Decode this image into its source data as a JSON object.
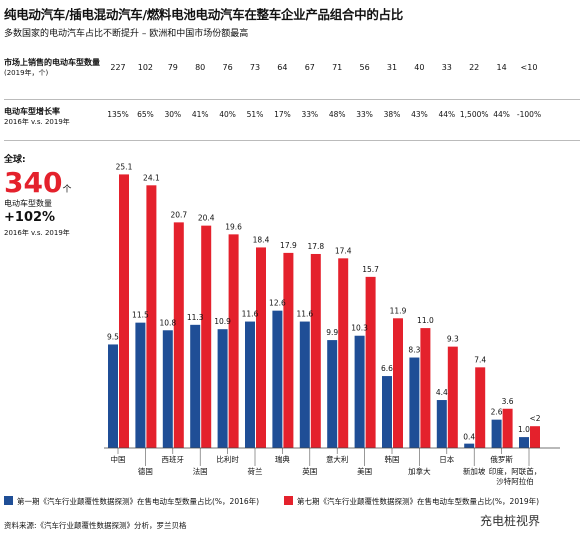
{
  "title": "纯电动汽车/插电混动汽车/燃料电池电动汽车在整车企业产品组合中的占比",
  "subtitle": "多数国家的电动汽车占比不断提升 – 欧洲和中国市场份额最高",
  "rows": {
    "models_label": "市场上销售的电动车型数量",
    "models_period": "(2019年，个)",
    "growth_label": "电动车型增长率",
    "growth_period": "2016年 v.s. 2019年"
  },
  "global": {
    "label": "全球:",
    "value": "340",
    "unit": "个",
    "desc": "电动车型数量",
    "growth": "+102%",
    "period": "2016年 v.s. 2019年"
  },
  "colors": {
    "series1": "#1f4e96",
    "series2": "#e4212c"
  },
  "chart_data": {
    "type": "bar",
    "categories": [
      "中国",
      "德国",
      "西班牙",
      "法国",
      "比利时",
      "荷兰",
      "瑞典",
      "英国",
      "意大利",
      "美国",
      "韩国",
      "加拿大",
      "日本",
      "新加坡",
      "俄罗斯",
      "印度，阿联酋，沙特阿拉伯"
    ],
    "model_counts": [
      "227",
      "102",
      "79",
      "80",
      "76",
      "73",
      "64",
      "67",
      "71",
      "56",
      "31",
      "40",
      "33",
      "22",
      "14",
      "<10"
    ],
    "growth_rates": [
      "135%",
      "65%",
      "30%",
      "41%",
      "40%",
      "51%",
      "17%",
      "33%",
      "48%",
      "33%",
      "38%",
      "43%",
      "44%",
      "1,500%",
      "44%",
      "-100%"
    ],
    "series": [
      {
        "name": "第一期《汽车行业颠覆性数据探测》在售电动车型数量占比(%，2016年)",
        "values": [
          9.5,
          11.5,
          10.8,
          11.3,
          10.9,
          11.6,
          12.6,
          11.6,
          9.9,
          10.3,
          6.6,
          8.3,
          4.4,
          0.4,
          2.6,
          1.0
        ],
        "labels": [
          "9.5",
          "11.5",
          "10.8",
          "11.3",
          "10.9",
          "11.6",
          "12.6",
          "11.6",
          "9.9",
          "10.3",
          "6.6",
          "8.3",
          "4.4",
          "0.4",
          "2.6",
          "1.0"
        ]
      },
      {
        "name": "第七期《汽车行业颠覆性数据探测》在售电动车型数量占比(%，2019年)",
        "values": [
          25.1,
          24.1,
          20.7,
          20.4,
          19.6,
          18.4,
          17.9,
          17.8,
          17.4,
          15.7,
          11.9,
          11.0,
          9.3,
          7.4,
          3.6,
          2
        ],
        "labels": [
          "25.1",
          "24.1",
          "20.7",
          "20.4",
          "19.6",
          "18.4",
          "17.9",
          "17.8",
          "17.4",
          "15.7",
          "11.9",
          "11.0",
          "9.3",
          "7.4",
          "3.6",
          "<2"
        ]
      }
    ]
  },
  "source": "资料来源:《汽车行业颠覆性数据探测》分析，罗兰贝格",
  "watermark": "充电桩视界"
}
